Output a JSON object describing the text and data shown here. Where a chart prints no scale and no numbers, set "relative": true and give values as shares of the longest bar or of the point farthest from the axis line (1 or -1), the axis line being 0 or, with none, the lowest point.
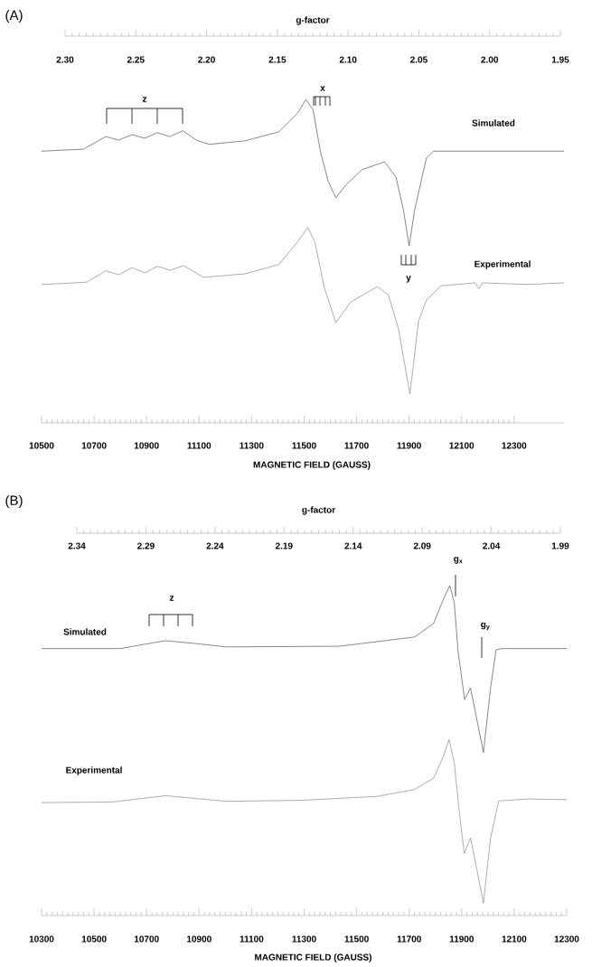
{
  "chart_data": [
    {
      "type": "line",
      "title": "(A)",
      "xlabel": "MAGNETIC FIELD (GAUSS)",
      "x2label": "g-factor",
      "relative": true,
      "xlim": [
        10500,
        12490
      ],
      "xticks": [
        10500,
        10700,
        10900,
        11100,
        11300,
        11500,
        11700,
        11900,
        12100,
        12300
      ],
      "x2lim": [
        2.3,
        1.95
      ],
      "x2ticks": [
        {
          "value": 2.3,
          "label": "2.30"
        },
        2.25,
        {
          "value": 2.2,
          "label": "2.20"
        },
        2.15,
        {
          "value": 2.1,
          "label": "2.10"
        },
        2.05,
        {
          "value": 2.0,
          "label": "2.00"
        },
        1.95
      ],
      "series": [
        {
          "name": "Simulated",
          "color": "#555555",
          "x": [
            10500,
            10659,
            10745,
            10793,
            10845,
            10893,
            10941,
            10988,
            11038,
            11090,
            11138,
            11276,
            11404,
            11476,
            11507,
            11534,
            11562,
            11591,
            11621,
            11662,
            11721,
            11807,
            11850,
            11879,
            11900,
            11921,
            11966,
            11993,
            12490
          ],
          "values": [
            0.84,
            0.846,
            0.885,
            0.874,
            0.891,
            0.88,
            0.897,
            0.885,
            0.903,
            0.874,
            0.861,
            0.872,
            0.9,
            0.958,
            1.0,
            0.969,
            0.84,
            0.749,
            0.696,
            0.738,
            0.783,
            0.807,
            0.76,
            0.657,
            0.547,
            0.657,
            0.819,
            0.84,
            0.84
          ]
        },
        {
          "name": "Experimental",
          "color": "#8a8a8a",
          "x": [
            10500,
            10672,
            10745,
            10793,
            10845,
            10893,
            10941,
            10990,
            11041,
            11117,
            11276,
            11404,
            11476,
            11514,
            11541,
            11576,
            11621,
            11678,
            11779,
            11821,
            11859,
            11903,
            11936,
            11966,
            12022,
            12152,
            12166,
            12180,
            12352,
            12490
          ],
          "values": [
            0.428,
            0.435,
            0.47,
            0.458,
            0.48,
            0.464,
            0.484,
            0.472,
            0.486,
            0.45,
            0.461,
            0.49,
            0.56,
            0.604,
            0.56,
            0.421,
            0.31,
            0.374,
            0.421,
            0.396,
            0.293,
            0.089,
            0.315,
            0.38,
            0.424,
            0.433,
            0.415,
            0.433,
            0.428,
            0.433
          ]
        }
      ],
      "annotations": [
        "z",
        "x",
        "y"
      ]
    },
    {
      "type": "line",
      "title": "(B)",
      "xlabel": "MAGNETIC FIELD (GAUSS)",
      "x2label": "g-factor",
      "relative": true,
      "xlim": [
        10300,
        12300
      ],
      "xticks": [
        10300,
        10500,
        10700,
        10900,
        11100,
        11300,
        11500,
        11700,
        11900,
        12100,
        12300
      ],
      "x2lim": [
        2.34,
        1.99
      ],
      "x2ticks": [
        2.34,
        2.29,
        2.24,
        2.19,
        2.14,
        2.09,
        2.04,
        1.99
      ],
      "series": [
        {
          "name": "Simulated",
          "color": "#555555",
          "x": [
            10300,
            10600,
            10772,
            10889,
            11003,
            11434,
            11721,
            11793,
            11831,
            11855,
            11872,
            11886,
            11911,
            11934,
            11983,
            12010,
            12031,
            12052,
            12300
          ],
          "values": [
            0.809,
            0.809,
            0.833,
            0.824,
            0.814,
            0.816,
            0.844,
            0.885,
            0.959,
            1.0,
            0.947,
            0.803,
            0.655,
            0.689,
            0.494,
            0.689,
            0.805,
            0.809,
            0.809
          ]
        },
        {
          "name": "Experimental",
          "color": "#8a8a8a",
          "x": [
            10300,
            10572,
            10772,
            11003,
            11290,
            11579,
            11721,
            11793,
            11831,
            11852,
            11872,
            11891,
            11910,
            11934,
            11983,
            12010,
            12041,
            12152,
            12300
          ],
          "values": [
            0.342,
            0.344,
            0.363,
            0.346,
            0.349,
            0.361,
            0.382,
            0.416,
            0.484,
            0.533,
            0.461,
            0.314,
            0.188,
            0.235,
            0.038,
            0.235,
            0.347,
            0.353,
            0.351
          ]
        }
      ],
      "annotations": [
        "g$_{x}$",
        "g$_{y}$",
        "z"
      ]
    }
  ]
}
